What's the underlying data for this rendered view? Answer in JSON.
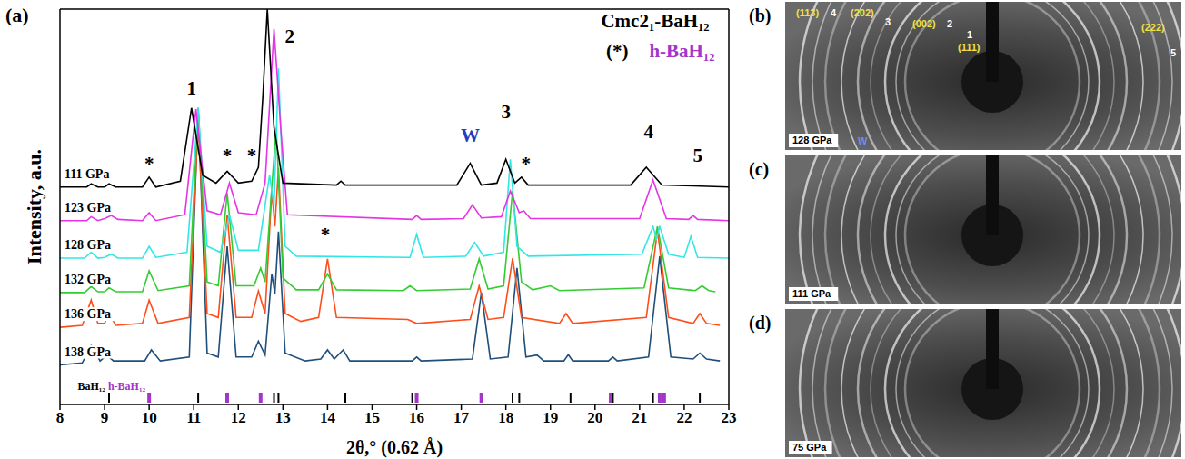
{
  "chart_data": {
    "type": "line",
    "panel_label": "(a)",
    "x_label": "2θ,° (0.62 Å)",
    "y_label": "Intensity, a.u.",
    "xlim": [
      8,
      23
    ],
    "xticks": [
      8,
      9,
      10,
      11,
      12,
      13,
      14,
      15,
      16,
      17,
      18,
      19,
      20,
      21,
      22,
      23
    ],
    "ylim": [
      0,
      100
    ],
    "tick_labels": "x",
    "grid": false,
    "series": [
      {
        "name": "138 GPa",
        "color": "#1f4f7a",
        "x": [
          8,
          8.5,
          8.7,
          8.9,
          9.05,
          9.2,
          9.9,
          10.05,
          10.25,
          10.9,
          11.1,
          11.3,
          11.55,
          11.75,
          11.95,
          12.3,
          12.45,
          12.6,
          12.75,
          12.82,
          12.9,
          13.05,
          13.5,
          13.85,
          14,
          14.15,
          14.35,
          14.5,
          15.9,
          16,
          16.1,
          17.25,
          17.45,
          17.65,
          18.05,
          18.25,
          18.45,
          18.7,
          18.85,
          19.3,
          19.4,
          19.5,
          20.3,
          20.4,
          20.5,
          21.2,
          21.45,
          21.7,
          22.2,
          22.35,
          22.5,
          22.8
        ],
        "values": [
          10,
          10.5,
          15,
          11,
          12.5,
          11,
          11,
          13.8,
          11,
          12,
          75,
          13,
          12,
          40,
          12,
          12,
          16,
          12.5,
          33,
          28,
          43.7,
          13,
          11,
          11.5,
          13.8,
          11.5,
          13.8,
          11,
          11,
          12,
          11,
          11.5,
          28.3,
          11.5,
          12,
          34.5,
          12,
          12.5,
          11,
          11,
          12.6,
          11,
          11,
          12,
          11,
          12,
          37.5,
          12,
          11.5,
          13,
          11.5,
          11
        ]
      },
      {
        "name": "136 GPa",
        "color": "#ff4d1a",
        "x": [
          8,
          8.5,
          8.7,
          8.85,
          9,
          9.1,
          9.25,
          9.85,
          10,
          10.2,
          10.9,
          11.1,
          11.3,
          11.55,
          11.75,
          11.95,
          12.3,
          12.45,
          12.6,
          12.75,
          12.82,
          12.9,
          13.05,
          13.4,
          13.8,
          14,
          14.2,
          15.8,
          16,
          17.2,
          17.4,
          17.6,
          17.95,
          18.15,
          18.35,
          19.2,
          19.35,
          19.5,
          21.15,
          21.4,
          21.65,
          22.2,
          22.35,
          22.5,
          22.8
        ],
        "values": [
          19.5,
          20,
          26.4,
          20.5,
          20.5,
          23,
          20,
          20.5,
          26.4,
          20.5,
          22,
          72,
          23,
          22,
          48,
          22,
          22,
          28.7,
          23,
          54,
          45,
          59.8,
          23,
          21,
          22,
          36.8,
          22,
          21.5,
          20.5,
          21.5,
          30,
          21.5,
          22,
          37,
          22,
          20.5,
          23,
          20.5,
          22,
          44,
          22,
          20.5,
          23,
          20.5,
          20
        ]
      },
      {
        "name": "132 GPa",
        "color": "#33cc33",
        "x": [
          8,
          8.55,
          8.7,
          8.85,
          9,
          9.1,
          9.25,
          9.85,
          10,
          10.2,
          10.9,
          11.1,
          11.3,
          11.55,
          11.75,
          11.95,
          12.35,
          12.5,
          12.6,
          12.75,
          12.85,
          13,
          13.3,
          13.8,
          14,
          14.2,
          15.7,
          15.85,
          16,
          17.2,
          17.4,
          17.6,
          17.95,
          18.15,
          18.35,
          18.6,
          19,
          19.2,
          21.1,
          21.4,
          21.65,
          22.25,
          22.4,
          22.55,
          22.7
        ],
        "values": [
          28.3,
          28.3,
          29.8,
          28.5,
          28.5,
          29.5,
          28.5,
          28.5,
          33.8,
          28.8,
          30,
          75,
          31,
          30,
          53.5,
          30,
          30,
          34.5,
          31,
          55,
          70,
          32,
          29,
          29,
          33,
          29,
          28.8,
          30,
          28.8,
          29.2,
          36.8,
          29.2,
          30,
          54,
          31,
          29,
          30,
          28.8,
          29.5,
          45,
          29.5,
          28.8,
          30,
          28.8,
          28.5
        ]
      },
      {
        "name": "128 GPa",
        "color": "#33e6e6",
        "x": [
          8,
          8.55,
          8.7,
          8.85,
          9,
          9.15,
          9.3,
          9.85,
          10,
          10.15,
          10.85,
          11.1,
          11.3,
          11.6,
          11.8,
          12,
          12.45,
          12.7,
          12.8,
          12.9,
          13.05,
          13.3,
          15.85,
          16,
          16.15,
          17.1,
          17.3,
          17.5,
          17.95,
          18.1,
          18.25,
          18.5,
          21.05,
          21.3,
          21.38,
          21.45,
          21.65,
          22,
          22.15,
          22.3,
          23
        ],
        "values": [
          37,
          37,
          38.5,
          37,
          37.2,
          38,
          37,
          37,
          40,
          37.2,
          38.5,
          75,
          40,
          38.5,
          48,
          39,
          39,
          58,
          50,
          85,
          40,
          37.5,
          37.2,
          43,
          37.2,
          37.5,
          41,
          37.5,
          38.5,
          62,
          40,
          37.5,
          38,
          45,
          42,
          45,
          38,
          37.2,
          42.5,
          37.2,
          37
        ]
      },
      {
        "name": "123 GPa",
        "color": "#e633e6",
        "x": [
          8,
          8.6,
          8.7,
          8.85,
          9,
          9.15,
          9.3,
          9.85,
          10,
          10.15,
          10.8,
          11.05,
          11.3,
          11.6,
          11.8,
          12,
          12.4,
          12.6,
          12.8,
          12.95,
          13.1,
          15.9,
          16,
          16.1,
          17.05,
          17.25,
          17.45,
          17.9,
          18.1,
          18.3,
          18.4,
          18.55,
          21,
          21.3,
          21.6,
          22.1,
          22.2,
          22.3,
          23
        ],
        "values": [
          46.5,
          46.5,
          47.5,
          46.5,
          47,
          47.8,
          46.8,
          46.5,
          48.5,
          46.5,
          48,
          74.7,
          49,
          48,
          56,
          48.5,
          48,
          56,
          95,
          70,
          48,
          46.8,
          47.8,
          46.8,
          47,
          50.5,
          47.2,
          47.5,
          54,
          48.5,
          49,
          47,
          47,
          56.8,
          47,
          46.8,
          47.8,
          46.8,
          46.5
        ]
      },
      {
        "name": "111 GPa",
        "color": "#000000",
        "x": [
          8,
          8.6,
          8.7,
          8.85,
          9,
          9.1,
          9.25,
          9.85,
          10,
          10.15,
          10.7,
          10.95,
          11.2,
          11.5,
          11.75,
          12,
          12.3,
          12.45,
          12.55,
          12.65,
          12.8,
          13,
          14.2,
          14.3,
          14.4,
          16.9,
          17.2,
          17.45,
          17.8,
          18,
          18.2,
          18.35,
          18.5,
          20.8,
          21.15,
          21.5,
          22.2,
          23
        ],
        "values": [
          55,
          55,
          55.8,
          55,
          55,
          55.8,
          55,
          55,
          57.5,
          55,
          56.5,
          75,
          58,
          56,
          59,
          56,
          56.5,
          60,
          78,
          100,
          70,
          56,
          55.5,
          56.5,
          55.5,
          55.5,
          61,
          55.5,
          56,
          62,
          56,
          57.5,
          55.5,
          55.5,
          60,
          55.5,
          55.3,
          55
        ]
      }
    ],
    "reference_ticks": [
      {
        "name": "BaH₁₂",
        "color": "#000000",
        "x": [
          9.1,
          11.1,
          12.8,
          12.9,
          14.4,
          15.9,
          18.15,
          18.3,
          19.45,
          20.4,
          21.3,
          21.45,
          22.35
        ]
      },
      {
        "name": "h-BaH₁₂",
        "color": "#a335c9",
        "x": [
          10.0,
          11.75,
          12.5,
          16.0,
          17.45,
          20.35,
          21.45,
          21.55
        ]
      }
    ],
    "annotations": [
      {
        "text": "1",
        "x": 10.95,
        "y": 80,
        "color": "#000000"
      },
      {
        "text": "2",
        "x": 13.15,
        "y": 93,
        "color": "#000000"
      },
      {
        "text": "W",
        "x": 17.2,
        "y": 68,
        "color": "#1f3fbf"
      },
      {
        "text": "3",
        "x": 18.0,
        "y": 74,
        "color": "#000000"
      },
      {
        "text": "4",
        "x": 21.2,
        "y": 69,
        "color": "#000000"
      },
      {
        "text": "5",
        "x": 22.3,
        "y": 63,
        "color": "#000000"
      },
      {
        "text": "*",
        "x": 10.0,
        "y": 61,
        "color": "#000000"
      },
      {
        "text": "*",
        "x": 11.75,
        "y": 63,
        "color": "#000000"
      },
      {
        "text": "*",
        "x": 12.3,
        "y": 63,
        "color": "#000000"
      },
      {
        "text": "*",
        "x": 13.95,
        "y": 43,
        "color": "#000000"
      },
      {
        "text": "*",
        "x": 18.45,
        "y": 61,
        "color": "#000000"
      },
      {
        "text": "Cmc2₁-BaH₁₂",
        "x": 21.35,
        "y": 97,
        "color": "#000000"
      },
      {
        "text": "(*)",
        "x": 20.5,
        "y": 89.5,
        "color": "#000000"
      },
      {
        "text": "h-BaH₁₂",
        "x": 21.95,
        "y": 89.5,
        "color": "#a335c9"
      }
    ]
  },
  "panels": [
    {
      "label": "(b)",
      "pressure": "128 GPa",
      "reflections": [
        {
          "hkl": "(113)",
          "peak": "4"
        },
        {
          "hkl": "(202)",
          "peak": "3"
        },
        {
          "hkl": "(002)",
          "peak": "2"
        },
        {
          "hkl": "(111)",
          "peak": "1"
        },
        {
          "hkl": "(222)",
          "peak": "5"
        }
      ],
      "marker": "W"
    },
    {
      "label": "(c)",
      "pressure": "111 GPa"
    },
    {
      "label": "(d)",
      "pressure": "75 GPa"
    }
  ]
}
